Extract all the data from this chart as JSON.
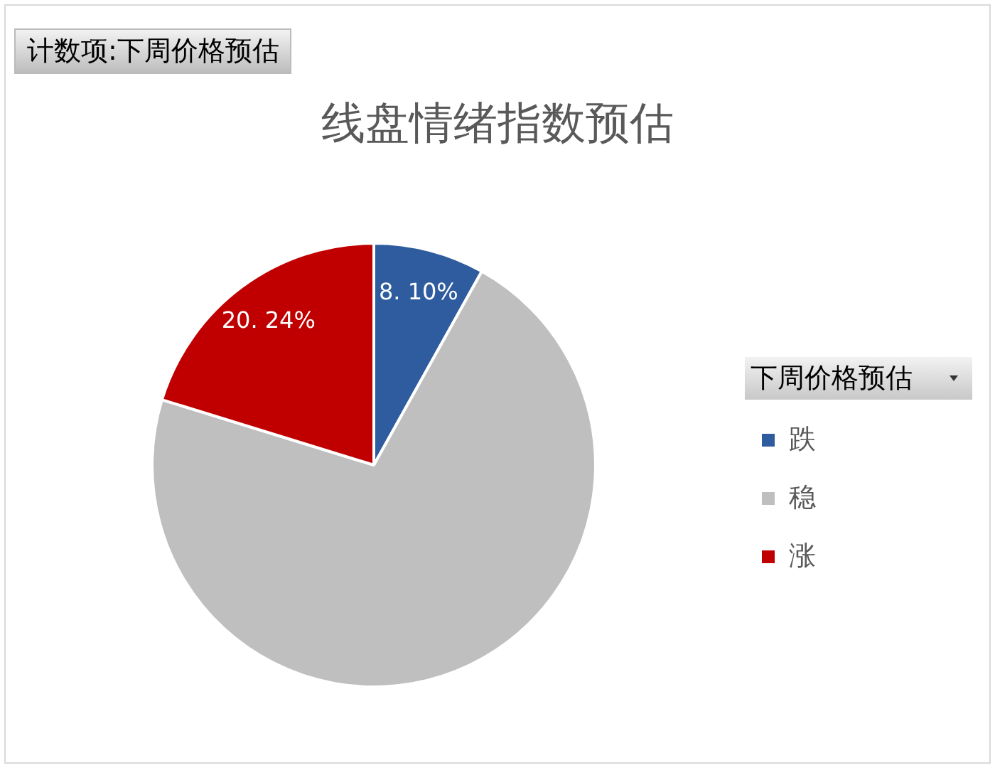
{
  "chart_data": {
    "type": "pie",
    "title": "线盘情绪指数预估",
    "annotations": [
      "计数项:下周价格预估"
    ],
    "legend_title": "下周价格预估",
    "legend": "right",
    "categories": [
      "跌",
      "稳",
      "涨"
    ],
    "values": [
      8.1,
      71.66,
      20.24
    ],
    "colors": [
      "#2e5c9e",
      "#bfbfbf",
      "#c00000"
    ],
    "value_labels": [
      "8. 10%",
      null,
      "20. 24%"
    ]
  }
}
